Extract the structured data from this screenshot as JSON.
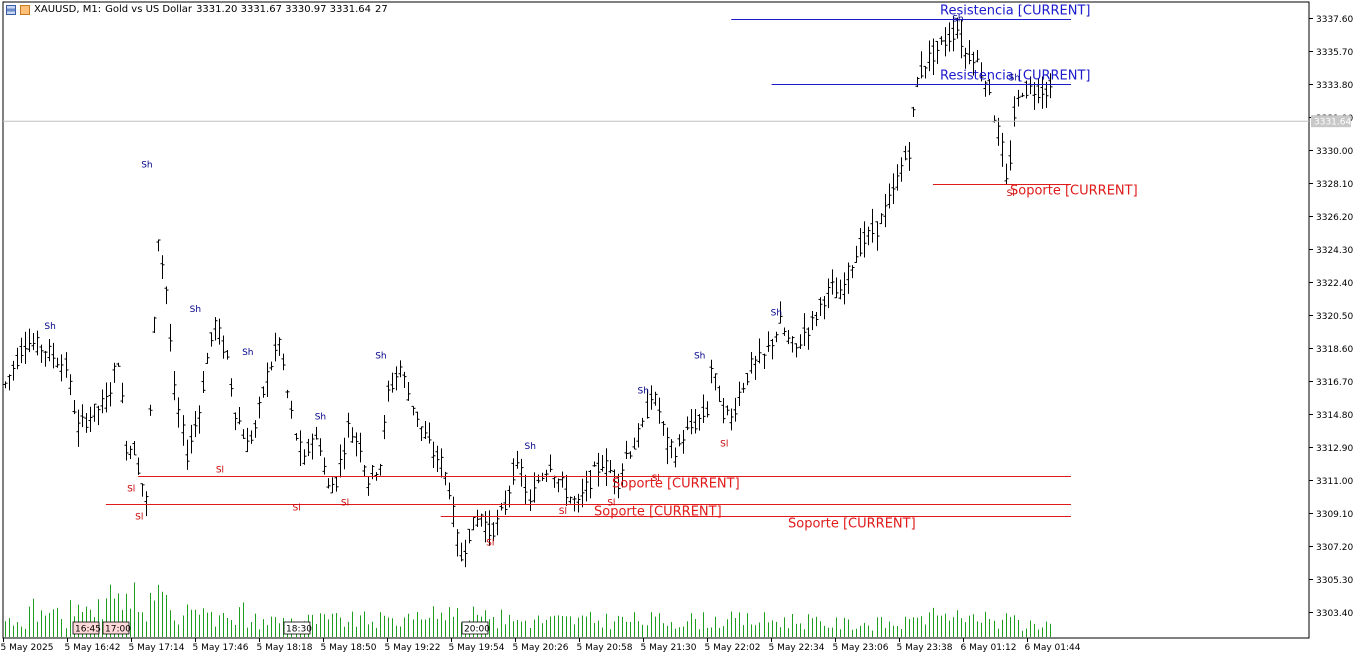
{
  "header": {
    "symbol": "XAUUSD, M1:",
    "description": "Gold vs US Dollar",
    "ohlc": "3331.20 3331.67 3330.97 3331.64",
    "tick_count": "27",
    "icons": [
      "chart-window-icon",
      "chart-type-icon"
    ]
  },
  "colors": {
    "bars": "#000000",
    "volume": "#1e9e1e",
    "resistance": "#1a1acc",
    "support": "#e01919",
    "swing_high": "#00008b",
    "swing_low": "#c80000",
    "price_line": "#c0c0c0"
  },
  "chart_data": {
    "type": "bar",
    "instrument": "XAUUSD",
    "timeframe": "M1",
    "ylim": [
      3301.9,
      3338.5
    ],
    "y_ticks": [
      "3337.60",
      "3335.70",
      "3333.80",
      "3331.90",
      "3330.00",
      "3328.10",
      "3326.20",
      "3324.30",
      "3322.40",
      "3320.50",
      "3318.60",
      "3316.70",
      "3314.80",
      "3312.90",
      "3311.00",
      "3309.10",
      "3307.20",
      "3305.30",
      "3303.40"
    ],
    "current_price_label": "3331.64",
    "current_price": 3331.64,
    "x_ticks": [
      "5 May 2025",
      "5 May 16:42",
      "5 May 17:14",
      "5 May 17:46",
      "5 May 18:18",
      "5 May 18:50",
      "5 May 19:22",
      "5 May 19:54",
      "5 May 20:26",
      "5 May 20:58",
      "5 May 21:30",
      "5 May 22:02",
      "5 May 22:34",
      "5 May 23:06",
      "5 May 23:38",
      "6 May 01:12",
      "6 May 01:44"
    ],
    "x_markers": [
      "16:45",
      "17:00",
      "18:30",
      "20:00"
    ],
    "x_markers_highlighted": [
      0,
      1
    ],
    "n_bars": 260,
    "price_path": [
      [
        0,
        3316.5
      ],
      [
        5,
        3319.0
      ],
      [
        10,
        3318.5
      ],
      [
        15,
        3317.5
      ],
      [
        18,
        3314.0
      ],
      [
        20,
        3314.5
      ],
      [
        25,
        3315.5
      ],
      [
        28,
        3318.0
      ],
      [
        30,
        3313.0
      ],
      [
        32,
        3312.8
      ],
      [
        35,
        3309.8
      ],
      [
        38,
        3325.0
      ],
      [
        40,
        3322.0
      ],
      [
        42,
        3316.0
      ],
      [
        45,
        3312.5
      ],
      [
        48,
        3315.0
      ],
      [
        50,
        3318.0
      ],
      [
        52,
        3320.0
      ],
      [
        55,
        3318.0
      ],
      [
        57,
        3315.0
      ],
      [
        60,
        3313.0
      ],
      [
        62,
        3314.0
      ],
      [
        65,
        3317.0
      ],
      [
        68,
        3319.0
      ],
      [
        70,
        3316.0
      ],
      [
        72,
        3313.5
      ],
      [
        74,
        3312.0
      ],
      [
        76,
        3313.5
      ],
      [
        78,
        3313.0
      ],
      [
        80,
        3310.5
      ],
      [
        82,
        3311.0
      ],
      [
        84,
        3313.0
      ],
      [
        85,
        3314.0
      ],
      [
        88,
        3313.0
      ],
      [
        90,
        3311.0
      ],
      [
        93,
        3312.0
      ],
      [
        95,
        3316.0
      ],
      [
        98,
        3317.5
      ],
      [
        100,
        3316.0
      ],
      [
        103,
        3314.0
      ],
      [
        106,
        3312.5
      ],
      [
        108,
        3312.0
      ],
      [
        110,
        3310.5
      ],
      [
        112,
        3307.5
      ],
      [
        113,
        3306.5
      ],
      [
        115,
        3308.0
      ],
      [
        118,
        3309.0
      ],
      [
        120,
        3308.0
      ],
      [
        122,
        3308.5
      ],
      [
        124,
        3309.5
      ],
      [
        126,
        3311.5
      ],
      [
        128,
        3311.5
      ],
      [
        130,
        3309.5
      ],
      [
        132,
        3311.0
      ],
      [
        135,
        3312.0
      ],
      [
        137,
        3311.0
      ],
      [
        140,
        3310.0
      ],
      [
        142,
        3309.5
      ],
      [
        145,
        3311.0
      ],
      [
        148,
        3312.0
      ],
      [
        150,
        3311.5
      ],
      [
        152,
        3311.0
      ],
      [
        154,
        3312.5
      ],
      [
        156,
        3313.0
      ],
      [
        158,
        3314.0
      ],
      [
        160,
        3316.0
      ],
      [
        162,
        3315.0
      ],
      [
        164,
        3313.0
      ],
      [
        166,
        3312.5
      ],
      [
        168,
        3313.5
      ],
      [
        170,
        3314.0
      ],
      [
        172,
        3314.5
      ],
      [
        174,
        3315.0
      ],
      [
        175,
        3317.5
      ],
      [
        178,
        3315.0
      ],
      [
        180,
        3314.5
      ],
      [
        182,
        3316.0
      ],
      [
        185,
        3317.5
      ],
      [
        188,
        3318.0
      ],
      [
        190,
        3319.0
      ],
      [
        192,
        3320.0
      ],
      [
        194,
        3319.0
      ],
      [
        196,
        3318.5
      ],
      [
        198,
        3319.5
      ],
      [
        200,
        3320.0
      ],
      [
        203,
        3321.5
      ],
      [
        205,
        3322.0
      ],
      [
        207,
        3321.5
      ],
      [
        210,
        3323.5
      ],
      [
        212,
        3324.5
      ],
      [
        214,
        3325.0
      ],
      [
        216,
        3325.5
      ],
      [
        218,
        3326.5
      ],
      [
        220,
        3327.5
      ],
      [
        222,
        3329.0
      ],
      [
        224,
        3330.0
      ],
      [
        225,
        3332.0
      ],
      [
        226,
        3334.0
      ],
      [
        228,
        3335.0
      ],
      [
        230,
        3335.5
      ],
      [
        232,
        3336.0
      ],
      [
        234,
        3336.5
      ],
      [
        236,
        3337.0
      ],
      [
        238,
        3335.5
      ],
      [
        240,
        3335.5
      ],
      [
        242,
        3334.5
      ],
      [
        244,
        3333.5
      ],
      [
        245,
        3332.0
      ],
      [
        247,
        3330.0
      ],
      [
        248,
        3328.0
      ],
      [
        249,
        3329.5
      ],
      [
        250,
        3332.0
      ],
      [
        252,
        3333.5
      ]
    ],
    "swing_highs": [
      [
        11,
        3319.5
      ],
      [
        35,
        3328.8
      ],
      [
        47,
        3320.5
      ],
      [
        60,
        3318.0
      ],
      [
        78,
        3314.3
      ],
      [
        93,
        3317.8
      ],
      [
        130,
        3312.6
      ],
      [
        158,
        3315.8
      ],
      [
        172,
        3317.8
      ],
      [
        191,
        3320.3
      ],
      [
        236,
        3337.2
      ],
      [
        250,
        3333.8
      ]
    ],
    "swing_lows": [
      [
        31,
        3310.9
      ],
      [
        33,
        3309.3
      ],
      [
        53,
        3312.0
      ],
      [
        72,
        3309.8
      ],
      [
        84,
        3310.1
      ],
      [
        120,
        3307.8
      ],
      [
        138,
        3309.6
      ],
      [
        150,
        3310.1
      ],
      [
        161,
        3311.5
      ],
      [
        178,
        3313.5
      ],
      [
        249,
        3327.9
      ]
    ],
    "levels": [
      {
        "kind": "resistance",
        "label": "Resistencia [CURRENT]",
        "price": 3337.5
      },
      {
        "kind": "resistance",
        "label": "Resistencia [CURRENT]",
        "price": 3333.8
      },
      {
        "kind": "support",
        "label": "Soporte [CURRENT]",
        "price": 3328.0
      },
      {
        "kind": "support",
        "label": "Soporte [CURRENT]",
        "price": 3311.2
      },
      {
        "kind": "support",
        "label": "Soporte [CURRENT]",
        "price": 3309.6
      },
      {
        "kind": "support",
        "label": "Soporte [CURRENT]",
        "price": 3308.9
      }
    ],
    "swing_high_label": "Sh",
    "swing_low_label": "Sl",
    "volume_scale": 30,
    "grid": false,
    "legend": "none"
  }
}
